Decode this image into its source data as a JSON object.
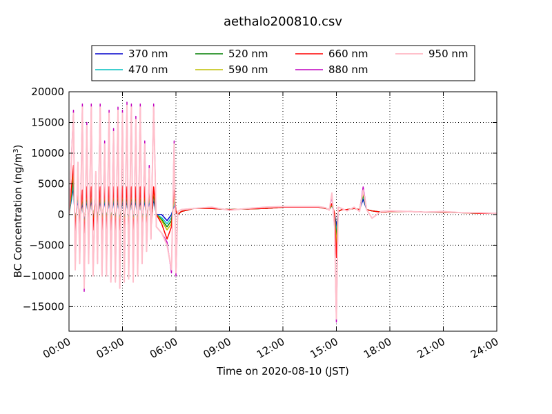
{
  "chart_data": {
    "type": "line",
    "title": "aethalo200810.csv",
    "xlabel": "Time on 2020-08-10 (JST)",
    "ylabel": "BC Concentration (ng/m³)",
    "xlim": [
      0,
      24
    ],
    "ylim": [
      -19000,
      20000
    ],
    "x_ticks": [
      0,
      3,
      6,
      9,
      12,
      15,
      18,
      21,
      24
    ],
    "x_tick_labels": [
      "00:00",
      "03:00",
      "06:00",
      "09:00",
      "12:00",
      "15:00",
      "18:00",
      "21:00",
      "24:00"
    ],
    "y_ticks": [
      -15000,
      -10000,
      -5000,
      0,
      5000,
      10000,
      15000,
      20000
    ],
    "y_tick_labels": [
      "−15000",
      "−10000",
      "−5000",
      "0",
      "5000",
      "10000",
      "15000",
      "20000"
    ],
    "grid": true,
    "legend_position": "top-center",
    "x": [
      0.0,
      0.25,
      0.35,
      0.5,
      0.6,
      0.75,
      0.85,
      1.0,
      1.1,
      1.25,
      1.35,
      1.5,
      1.6,
      1.75,
      1.85,
      2.0,
      2.1,
      2.25,
      2.35,
      2.5,
      2.6,
      2.75,
      2.85,
      3.0,
      3.1,
      3.25,
      3.35,
      3.5,
      3.6,
      3.75,
      3.85,
      4.0,
      4.1,
      4.25,
      4.35,
      4.5,
      4.6,
      4.75,
      4.9,
      5.2,
      5.5,
      5.75,
      5.9,
      6.0,
      6.1,
      6.3,
      7.0,
      8.0,
      9.0,
      10.0,
      11.0,
      12.0,
      13.0,
      14.0,
      14.4,
      14.6,
      14.75,
      14.9,
      15.0,
      15.1,
      15.3,
      15.6,
      16.0,
      16.3,
      16.5,
      16.7,
      17.0,
      17.5,
      18.0,
      19.0,
      20.0,
      21.0,
      22.0,
      23.0,
      24.0
    ],
    "series": [
      {
        "name": "370 nm",
        "color": "#0000cc",
        "width": 1.5,
        "values": [
          0,
          4500,
          -1500,
          2500,
          -800,
          2000,
          -1500,
          2500,
          -800,
          2500,
          -1000,
          2500,
          -1000,
          2500,
          -1000,
          2500,
          -1000,
          2500,
          -1000,
          2500,
          -1000,
          2500,
          -1000,
          2500,
          -1000,
          2500,
          -1000,
          2500,
          -1000,
          2500,
          -1000,
          2500,
          -1000,
          2500,
          -1000,
          2500,
          -1000,
          2500,
          0,
          0,
          -1000,
          0,
          1500,
          500,
          0,
          500,
          1000,
          1000,
          800,
          900,
          1000,
          1200,
          1200,
          1200,
          1000,
          800,
          1500,
          200,
          -2000,
          500,
          800,
          800,
          1000,
          800,
          2500,
          800,
          600,
          400,
          500,
          500,
          400,
          400,
          300,
          200,
          200
        ]
      },
      {
        "name": "470 nm",
        "color": "#00bfbf",
        "width": 1.5,
        "values": [
          0,
          5000,
          -1800,
          3000,
          -1000,
          2500,
          -1800,
          3000,
          -1000,
          3000,
          -1200,
          3000,
          -1200,
          3000,
          -1200,
          3000,
          -1200,
          3000,
          -1200,
          3000,
          -1200,
          3000,
          -1200,
          3000,
          -1200,
          3000,
          -1200,
          3000,
          -1200,
          3000,
          -1200,
          3000,
          -1200,
          3000,
          -1200,
          3000,
          -1200,
          3000,
          0,
          -500,
          -1500,
          -500,
          2000,
          500,
          0,
          500,
          1000,
          1000,
          800,
          900,
          1000,
          1200,
          1200,
          1200,
          1000,
          800,
          1500,
          200,
          -3000,
          500,
          800,
          800,
          1000,
          800,
          3000,
          800,
          600,
          400,
          500,
          500,
          400,
          400,
          300,
          200,
          200
        ]
      },
      {
        "name": "520 nm",
        "color": "#007f00",
        "width": 1.5,
        "values": [
          0,
          6000,
          -2200,
          3500,
          -1200,
          3000,
          -2200,
          3500,
          -1200,
          3500,
          -1500,
          3500,
          -1500,
          3500,
          -1500,
          3500,
          -1500,
          3500,
          -1500,
          3500,
          -1500,
          3500,
          -1500,
          3500,
          -1500,
          3500,
          -1500,
          3500,
          -1500,
          3500,
          -1500,
          3500,
          -1500,
          3500,
          -1500,
          3500,
          -1500,
          3500,
          0,
          -800,
          -2000,
          -1000,
          2500,
          500,
          0,
          500,
          1000,
          1000,
          800,
          900,
          1000,
          1200,
          1200,
          1200,
          1000,
          800,
          1500,
          200,
          -4000,
          500,
          800,
          800,
          1000,
          800,
          3200,
          800,
          600,
          400,
          500,
          500,
          400,
          400,
          300,
          200,
          200
        ]
      },
      {
        "name": "590 nm",
        "color": "#bfbf00",
        "width": 1.5,
        "values": [
          0,
          7000,
          -2500,
          4000,
          -1500,
          3500,
          -2500,
          4000,
          -1500,
          4000,
          -1800,
          4000,
          -1800,
          4000,
          -1800,
          4000,
          -1800,
          4000,
          -1800,
          4000,
          -1800,
          4000,
          -1800,
          4000,
          -1800,
          4000,
          -1800,
          4000,
          -1800,
          4000,
          -1800,
          4000,
          -1800,
          4000,
          -1800,
          4000,
          -1800,
          4000,
          0,
          -1000,
          -2500,
          -1500,
          3000,
          500,
          0,
          500,
          1000,
          1000,
          800,
          900,
          1000,
          1200,
          1200,
          1200,
          1000,
          800,
          1600,
          200,
          -5000,
          500,
          800,
          800,
          1000,
          800,
          3500,
          800,
          600,
          400,
          500,
          500,
          400,
          400,
          300,
          200,
          200
        ]
      },
      {
        "name": "660 nm",
        "color": "#ff0000",
        "width": 1.5,
        "values": [
          0,
          8000,
          -3000,
          4500,
          -2000,
          4000,
          -3000,
          4500,
          -2000,
          4500,
          -2500,
          4500,
          -2500,
          4500,
          -2500,
          4500,
          -2500,
          4500,
          -2500,
          4500,
          -2500,
          4500,
          -2500,
          4500,
          -2500,
          4500,
          -2500,
          4500,
          -2500,
          4500,
          -2500,
          4500,
          -2500,
          4500,
          -2500,
          4500,
          -2500,
          4500,
          0,
          -1500,
          -4000,
          -2000,
          4000,
          500,
          0,
          500,
          1000,
          1000,
          800,
          900,
          1000,
          1200,
          1200,
          1200,
          1000,
          800,
          1800,
          200,
          -7000,
          500,
          800,
          800,
          1000,
          800,
          3800,
          800,
          600,
          400,
          500,
          500,
          400,
          400,
          300,
          200,
          200
        ]
      },
      {
        "name": "880 nm",
        "color": "#bf00bf",
        "width": 1.5,
        "values": [
          0,
          17000,
          -9000,
          8500,
          -8000,
          18000,
          -12500,
          15000,
          -8000,
          18000,
          -10000,
          7000,
          -8000,
          18000,
          -10000,
          12000,
          -10000,
          17000,
          -11000,
          14000,
          -11000,
          17500,
          -12000,
          17000,
          -11000,
          18300,
          -10500,
          18000,
          -11000,
          16000,
          -10000,
          18000,
          -8000,
          12000,
          -6000,
          8000,
          -4000,
          18000,
          -2000,
          -3000,
          -4500,
          -9500,
          12000,
          -10000,
          500,
          800,
          1000,
          1200,
          700,
          1000,
          1200,
          1300,
          1300,
          1300,
          1100,
          700,
          3000,
          -2000,
          -17500,
          1200,
          1000,
          600,
          1200,
          500,
          4500,
          800,
          -600,
          500,
          600,
          500,
          400,
          500,
          300,
          300,
          200
        ]
      },
      {
        "name": "950 nm",
        "color": "#ffc0cb",
        "width": 2.0,
        "values": [
          0,
          16500,
          -9000,
          8500,
          -8000,
          17500,
          -12000,
          14500,
          -8000,
          17500,
          -10000,
          7000,
          -8000,
          17500,
          -10000,
          11500,
          -10000,
          16500,
          -11000,
          13500,
          -11000,
          17000,
          -12000,
          16500,
          -11000,
          17800,
          -10500,
          17500,
          -11000,
          15500,
          -10000,
          17500,
          -8000,
          11500,
          -6000,
          7500,
          -4000,
          17500,
          -2000,
          -3000,
          -5000,
          -9000,
          11500,
          -9500,
          500,
          800,
          1000,
          1200,
          700,
          1000,
          1200,
          1300,
          1300,
          1300,
          1100,
          700,
          3500,
          -2000,
          -17000,
          1200,
          1000,
          600,
          1200,
          500,
          4000,
          800,
          -600,
          500,
          600,
          500,
          400,
          500,
          300,
          300,
          200
        ]
      }
    ]
  }
}
